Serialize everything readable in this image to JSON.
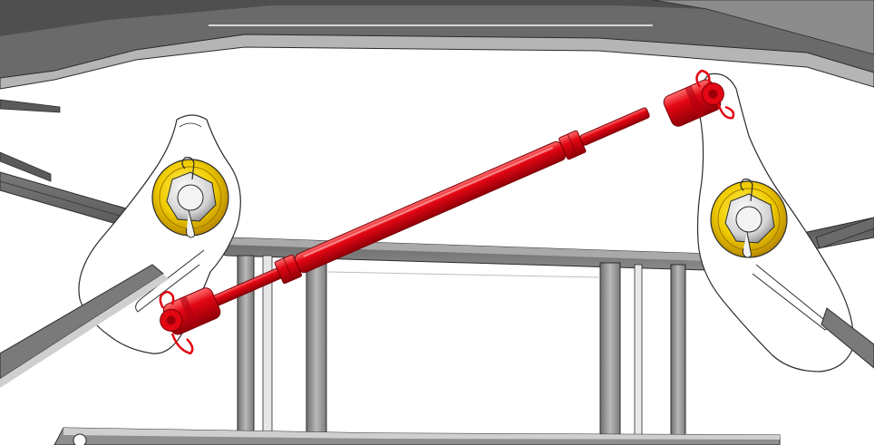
{
  "illustration": {
    "subject": "turnbuckle-linkage",
    "colors": {
      "frame_dark": "#5f5f5f",
      "frame_mid": "#8c8c8c",
      "frame_light": "#c9c9c9",
      "frame_face": "#e9e9e9",
      "outline": "#2b2b2b",
      "plate_fill": "#ffffff",
      "washer_outer": "#c99a00",
      "washer_inner": "#f2d200",
      "rod_main": "#e30613",
      "rod_dark": "#9b0008",
      "rod_highlight": "#ff6a6a",
      "pin_silver": "#d8d8d8"
    },
    "parts": [
      "frame-top-beam",
      "frame-cross-beam",
      "frame-uprights",
      "left-pivot-plate",
      "right-pivot-plate",
      "left-pivot-washer-nut",
      "right-pivot-washer-nut",
      "turnbuckle-rod",
      "rod-end-clevis-left",
      "rod-end-clevis-right",
      "cotter-pins"
    ]
  }
}
